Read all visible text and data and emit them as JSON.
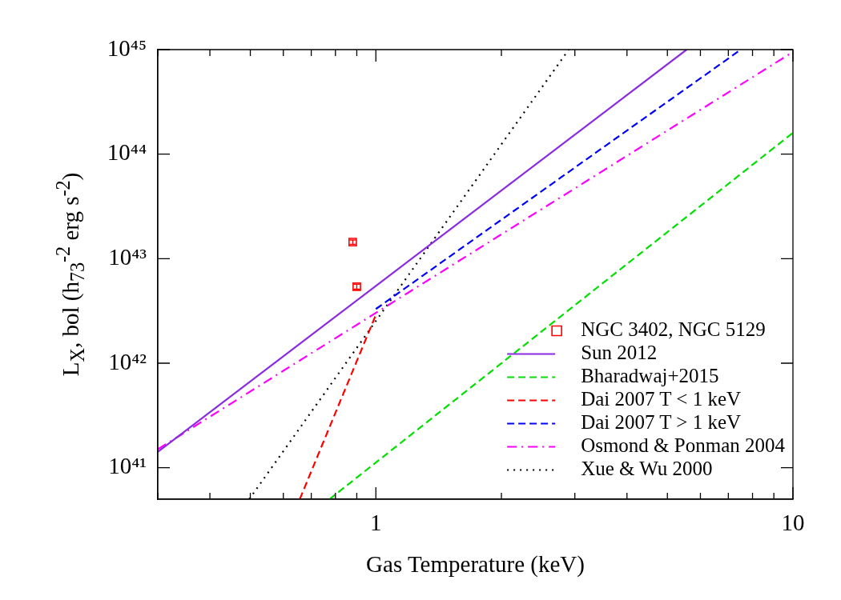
{
  "chart_data": {
    "type": "line",
    "xlabel": "Gas Temperature (keV)",
    "ylabel": "L$_{X}$, bol (h$_{73}$$^{-2}$ erg s$^{-2}$)",
    "log": "xy",
    "legend": "bottom right",
    "xlim": [
      0.3,
      10
    ],
    "ylim": [
      5e+40,
      1e+45
    ],
    "xticks": [
      {
        "value": 0.3,
        "label": null
      },
      {
        "value": 0.4,
        "label": null
      },
      {
        "value": 0.5,
        "label": null
      },
      {
        "value": 0.6,
        "label": null
      },
      {
        "value": 0.7,
        "label": null
      },
      {
        "value": 0.8,
        "label": null
      },
      {
        "value": 0.9,
        "label": null
      },
      1,
      {
        "value": 2,
        "label": null
      },
      {
        "value": 3,
        "label": null
      },
      {
        "value": 4,
        "label": null
      },
      {
        "value": 5,
        "label": null
      },
      {
        "value": 6,
        "label": null
      },
      {
        "value": 7,
        "label": null
      },
      {
        "value": 8,
        "label": null
      },
      {
        "value": 9,
        "label": null
      },
      10
    ],
    "yticks": [
      {
        "value": 1e+41,
        "label": "10⁴¹"
      },
      {
        "value": 1e+42,
        "label": "10⁴²"
      },
      {
        "value": 1e+43,
        "label": "10⁴³"
      },
      {
        "value": 1e+44,
        "label": "10⁴⁴"
      },
      {
        "value": 1e+45,
        "label": "10⁴⁵"
      }
    ],
    "series": [
      {
        "name": "NGC 3402, NGC 5129",
        "type": "scatter",
        "marker": "square",
        "color": "#ff0000",
        "x": [
          0.88,
          0.9
        ],
        "values": [
          1.44e+43,
          5.4e+42
        ],
        "errors": [
          7e+41,
          3e+41
        ]
      },
      {
        "name": "Sun 2012",
        "line_style": "solid",
        "color": "#8a2be2",
        "x": [
          0.3,
          5.56
        ],
        "values": [
          1.42e+41,
          1e+45
        ]
      },
      {
        "name": "Bharadwaj+2015",
        "line_style": "dashed",
        "color": "#00e000",
        "x": [
          0.774,
          10
        ],
        "values": [
          5e+40,
          1.6e+44
        ]
      },
      {
        "name": "Dai 2007 T < 1 keV",
        "line_style": "dashed",
        "color": "#ff0000",
        "x": [
          0.657,
          1
        ],
        "values": [
          5e+40,
          2.9e+42
        ]
      },
      {
        "name": "Dai 2007 T > 1 keV",
        "line_style": "dashed",
        "color": "#0000ff",
        "x": [
          1,
          7.5
        ],
        "values": [
          3.3e+42,
          1e+45
        ]
      },
      {
        "name": "Osmond & Ponman 2004",
        "line_style": "dashdot",
        "color": "#ff00ff",
        "x": [
          0.3,
          10
        ],
        "values": [
          1.5e+41,
          9.5e+44
        ]
      },
      {
        "name": "Xue & Wu 2000",
        "line_style": "dotted",
        "color": "#000000",
        "x": [
          0.497,
          2.9
        ],
        "values": [
          5e+40,
          1e+45
        ]
      }
    ]
  }
}
